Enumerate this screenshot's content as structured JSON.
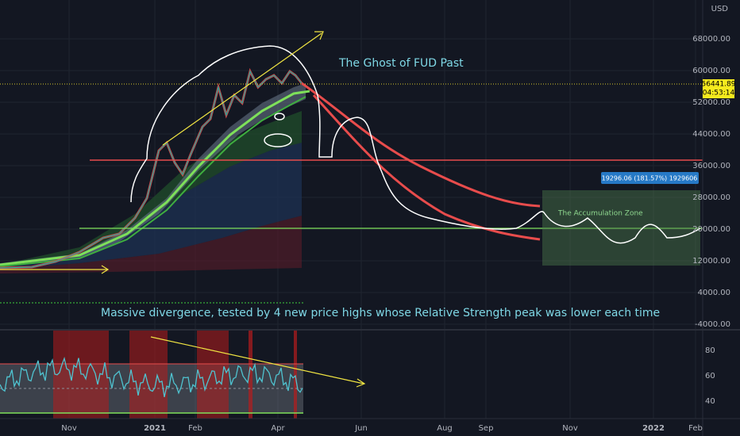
{
  "price_axis": {
    "currency": "USD",
    "labels": [
      "68000.00",
      "60000.00",
      "52000.00",
      "44000.00",
      "36000.00",
      "28000.00",
      "20000.00",
      "12000.00",
      "4000.00",
      "-4000.00"
    ]
  },
  "price_tag": {
    "price": "56441.89",
    "countdown": "04:53:14"
  },
  "measure_label": "19296.06 (181.57%) 1929606",
  "annotations": {
    "ghost": "The Ghost of FUD Past",
    "zone": "The Accumulation Zone",
    "divergence": "Massive divergence, tested by 4 new price highs whose Relative Strength peak was lower each time"
  },
  "rsi_axis": {
    "labels": [
      "80",
      "60",
      "40"
    ]
  },
  "time_axis": {
    "labels": [
      "Nov",
      "2021",
      "Feb",
      "Apr",
      "Jun",
      "Aug",
      "Sep",
      "Nov",
      "2022",
      "Feb"
    ]
  }
}
